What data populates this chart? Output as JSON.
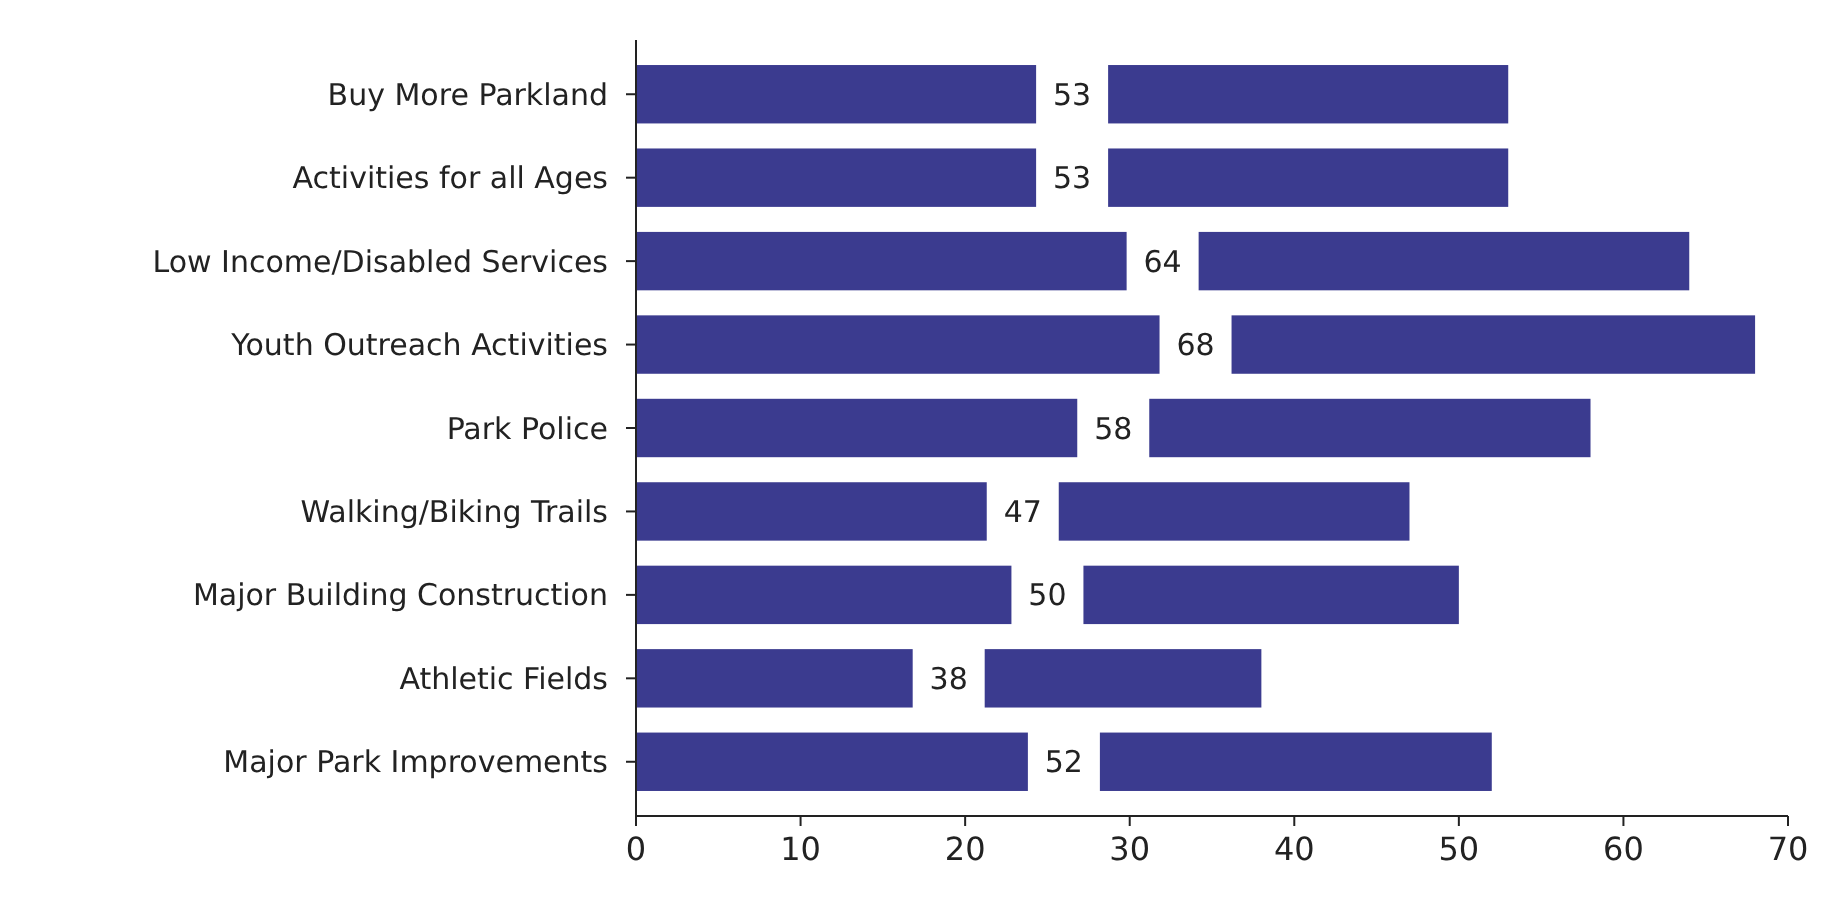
{
  "chart_data": {
    "type": "bar",
    "orientation": "horizontal",
    "categories": [
      "Buy More Parkland",
      "Activities for all Ages",
      "Low Income/Disabled Services",
      "Youth Outreach Activities",
      "Park Police",
      "Walking/Biking Trails",
      "Major Building Construction",
      "Athletic Fields",
      "Major Park Improvements"
    ],
    "values": [
      53,
      53,
      64,
      68,
      58,
      47,
      50,
      38,
      52
    ],
    "color": "#3b3b8f",
    "xlim": [
      0,
      70
    ],
    "xticks": [
      0,
      10,
      20,
      30,
      40,
      50,
      60,
      70
    ],
    "data_labels": true
  }
}
